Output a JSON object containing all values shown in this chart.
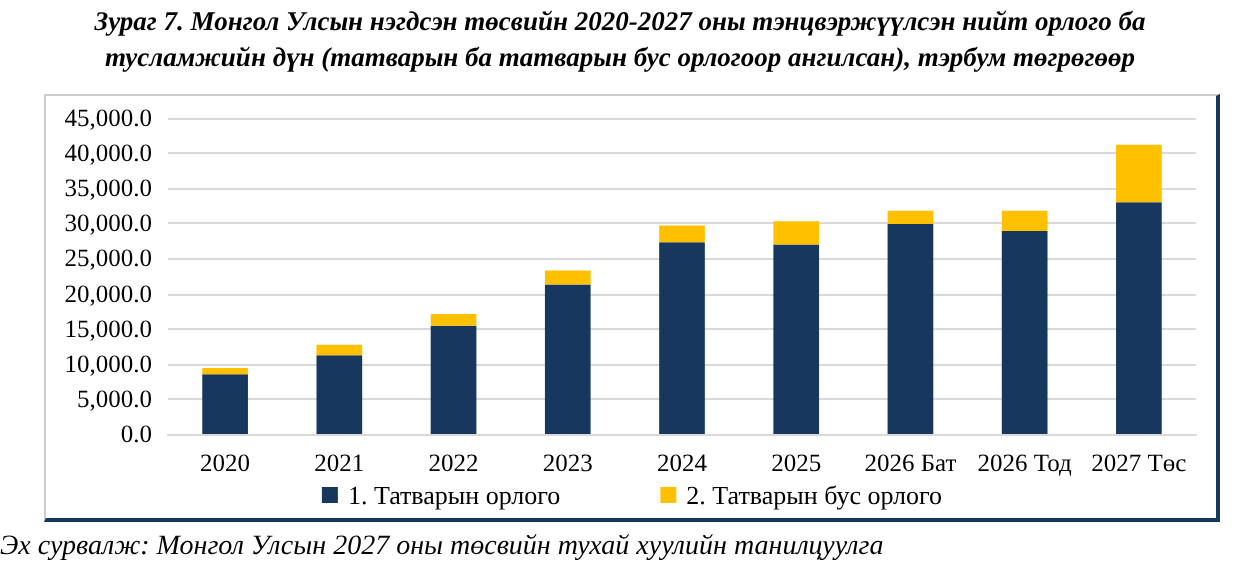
{
  "chart_data": {
    "type": "bar",
    "stacked": true,
    "title": "Зураг 7. Монгол Улсын нэгдсэн төсвийн 2020-2027 оны тэнцвэржүүлсэн нийт орлого ба тусламжийн дүн (татварын ба татварын бус орлогоор ангилсан), тэрбум төгрөгөөр",
    "categories": [
      "2020",
      "2021",
      "2022",
      "2023",
      "2024",
      "2025",
      "2026 Бат",
      "2026 Тод",
      "2027 Төс"
    ],
    "series": [
      {
        "name": "1. Татварын орлого",
        "color": "#17375e",
        "values": [
          8500,
          11200,
          15400,
          21300,
          27300,
          27000,
          29900,
          28900,
          33000
        ]
      },
      {
        "name": "2. Татварын бус орлого",
        "color": "#ffc000",
        "values": [
          900,
          1500,
          1700,
          2000,
          2400,
          3300,
          1900,
          2900,
          8200
        ]
      }
    ],
    "ylim": [
      0,
      45000
    ],
    "yticks": [
      {
        "value": 0,
        "label": "0.0"
      },
      {
        "value": 5000,
        "label": "5,000.0"
      },
      {
        "value": 10000,
        "label": "10,000.0"
      },
      {
        "value": 15000,
        "label": "15,000.0"
      },
      {
        "value": 20000,
        "label": "20,000.0"
      },
      {
        "value": 25000,
        "label": "25,000.0"
      },
      {
        "value": 30000,
        "label": "30,000.0"
      },
      {
        "value": 35000,
        "label": "35,000.0"
      },
      {
        "value": 40000,
        "label": "40,000.0"
      },
      {
        "value": 45000,
        "label": "45,000.0"
      }
    ],
    "grid": "y",
    "legend": "bottom",
    "annotations": [
      "Эх сурвалж: Монгол Улсын 2027 оны төсвийн тухай хуулийн танилцуулга"
    ]
  }
}
